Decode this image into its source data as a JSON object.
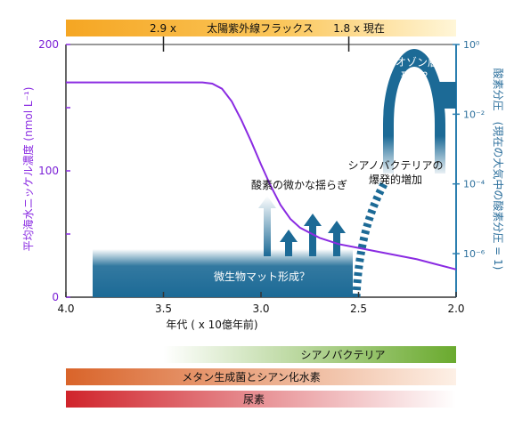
{
  "chart_data": {
    "type": "line",
    "xlabel": "年代 ( x 10億年前)",
    "ylabel_left": "平均海水ニッケル濃度 (nmol L⁻¹)",
    "ylabel_right": "酸素分圧　(現在の大気中の酸素分圧 = 1)",
    "x_ticks": [
      "4.0",
      "3.5",
      "3.0",
      "2.5",
      "2.0"
    ],
    "x_tick_values": [
      4.0,
      3.5,
      3.0,
      2.5,
      2.0
    ],
    "xlim": [
      4.0,
      2.0
    ],
    "y_left_ticks": [
      "0",
      "100",
      "200"
    ],
    "y_left_tick_values": [
      0,
      100,
      200
    ],
    "ylim_left": [
      0,
      200
    ],
    "y_right_ticks": [
      "10⁰",
      "10⁻²",
      "10⁻⁴",
      "10⁻⁶"
    ],
    "y_right_tick_values": [
      0,
      -2,
      -4,
      -6
    ],
    "ylim_right_log10": [
      -7.25,
      0
    ],
    "nickel_series": {
      "color": "#8a2be2",
      "x": [
        4.0,
        3.8,
        3.6,
        3.4,
        3.3,
        3.25,
        3.2,
        3.15,
        3.1,
        3.05,
        3.0,
        2.95,
        2.9,
        2.85,
        2.8,
        2.7,
        2.6,
        2.5,
        2.4,
        2.3,
        2.2,
        2.1,
        2.0
      ],
      "values": [
        170,
        170,
        170,
        170,
        170,
        169,
        165,
        155,
        140,
        123,
        105,
        88,
        73,
        62,
        55,
        47,
        42,
        39,
        36,
        33,
        30,
        26,
        22
      ]
    },
    "solar_uv_bar": {
      "label": "太陽紫外線フラックス",
      "marks": [
        {
          "x": 3.5,
          "label": "2.9 x"
        },
        {
          "x": 2.55,
          "label": "1.8 x 現在"
        }
      ],
      "color_from": "#f5a623",
      "color_to": "#fff6d8"
    },
    "annotations": {
      "microbial_mat": "微生物マット形成？",
      "oxygen_fluctuation": "酸素の微かな揺らぎ",
      "cyanobacteria_bloom_line1": "シアノバクテリアの",
      "cyanobacteria_bloom_line2": "爆発的増加",
      "ozone_line1": "オゾン層",
      "ozone_line2": "形成？"
    },
    "timeline_bars": [
      {
        "label": "シアノバクテリア",
        "x_start": 3.5,
        "x_end": 2.0,
        "color_from": "#ffffff",
        "color_to": "#6aaa2e"
      },
      {
        "label": "メタン生成菌とシアン化水素",
        "x_start": 4.0,
        "x_end": 2.0,
        "color_from": "#d9642a",
        "color_to": "#fdf0e6"
      },
      {
        "label": "尿素",
        "x_start": 4.0,
        "x_end": 2.0,
        "color_from": "#d0242b",
        "color_to": "#ffffff"
      }
    ],
    "colors": {
      "nickel_line": "#8a2be2",
      "oxygen": "#1c6a96",
      "left_axis": "#8a2be2",
      "right_axis": "#2c7fb0"
    }
  }
}
